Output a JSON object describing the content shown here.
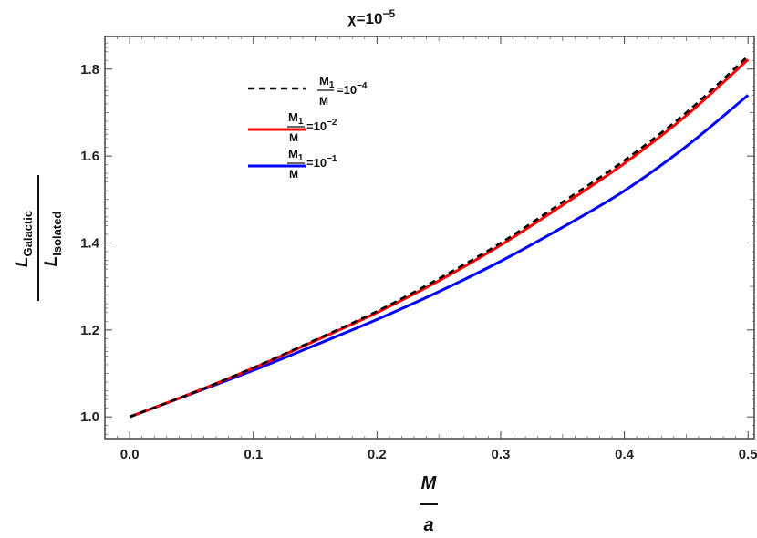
{
  "chart_data": {
    "type": "line",
    "title": {
      "base": "χ=10",
      "exp": "−5"
    },
    "xlabel": {
      "num": "M",
      "den": "a"
    },
    "ylabel": {
      "num_main": "L",
      "num_sub": "Galactic",
      "den_main": "L",
      "den_sub": "Isolated"
    },
    "xlim": [
      -0.02,
      0.505
    ],
    "ylim": [
      0.95,
      1.875
    ],
    "xticks": [
      0.0,
      0.1,
      0.2,
      0.3,
      0.4,
      0.5
    ],
    "xtick_labels": [
      "0.0",
      "0.1",
      "0.2",
      "0.3",
      "0.4",
      "0.5"
    ],
    "yticks": [
      1.0,
      1.2,
      1.4,
      1.6,
      1.8
    ],
    "ytick_labels": [
      "1.0",
      "1.2",
      "1.4",
      "1.6",
      "1.8"
    ],
    "x": [
      0.0,
      0.05,
      0.1,
      0.15,
      0.2,
      0.25,
      0.3,
      0.35,
      0.4,
      0.45,
      0.5
    ],
    "series": [
      {
        "legend": {
          "num_main": "M",
          "num_sub": "1",
          "den": "M",
          "rhs_base": "=10",
          "rhs_exp": "−4"
        },
        "color": "#000000",
        "style": "dashed",
        "values": [
          1.0,
          1.054,
          1.113,
          1.177,
          1.243,
          1.318,
          1.4,
          1.494,
          1.59,
          1.7,
          1.83
        ]
      },
      {
        "legend": {
          "num_main": "M",
          "num_sub": "1",
          "den": "M",
          "rhs_base": "=10",
          "rhs_exp": "−2"
        },
        "color": "#ff0000",
        "style": "solid",
        "values": [
          1.0,
          1.054,
          1.112,
          1.175,
          1.24,
          1.313,
          1.395,
          1.487,
          1.583,
          1.693,
          1.822
        ]
      },
      {
        "legend": {
          "num_main": "M",
          "num_sub": "1",
          "den": "M",
          "rhs_base": "=10",
          "rhs_exp": "−1"
        },
        "color": "#0000ff",
        "style": "solid",
        "values": [
          1.0,
          1.053,
          1.107,
          1.165,
          1.224,
          1.288,
          1.358,
          1.436,
          1.52,
          1.622,
          1.74
        ]
      }
    ],
    "legend_position": "top-left",
    "grid": false
  }
}
